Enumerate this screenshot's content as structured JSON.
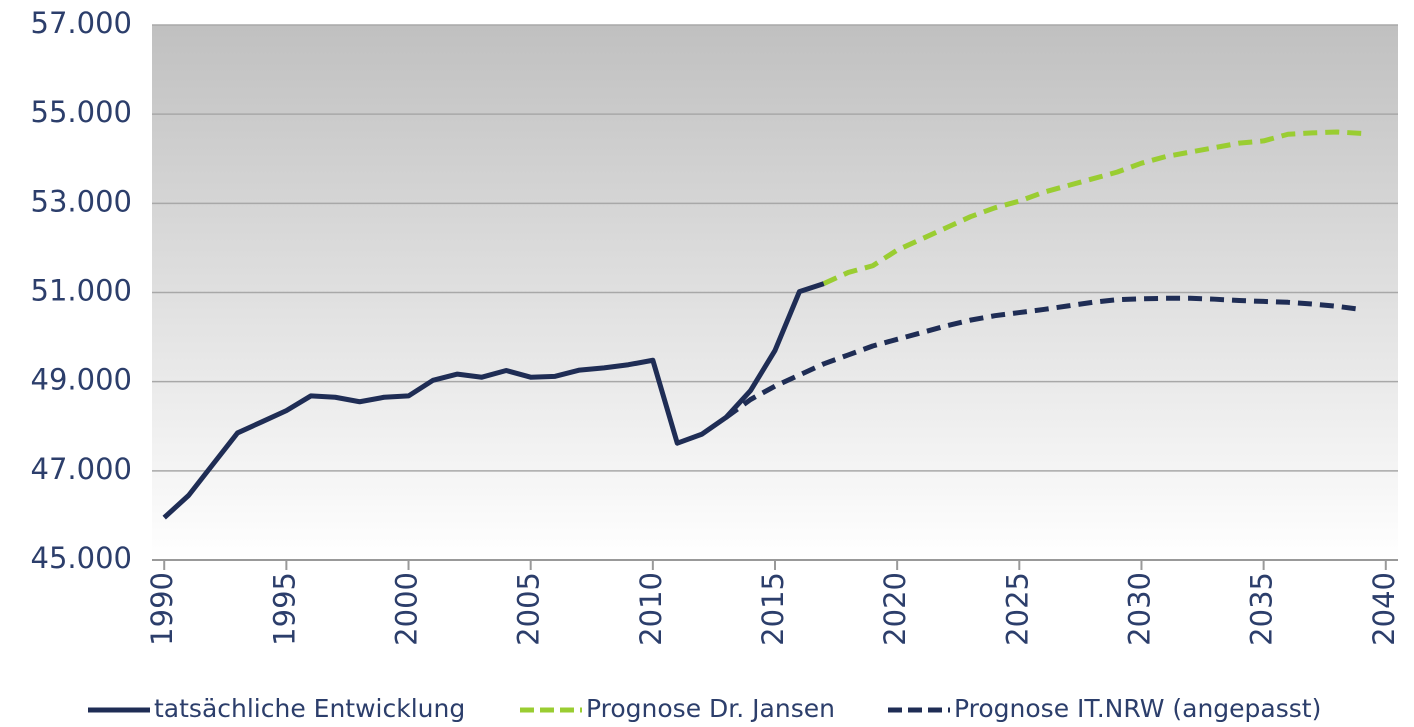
{
  "chart_data": {
    "type": "line",
    "xlim": [
      1989.5,
      2040.5
    ],
    "xticks": [
      1990,
      1995,
      2000,
      2005,
      2010,
      2015,
      2020,
      2025,
      2030,
      2035,
      2040
    ],
    "ylim": [
      45000,
      57000
    ],
    "yticks": [
      {
        "value": 45000,
        "label": "45.000"
      },
      {
        "value": 47000,
        "label": "47.000"
      },
      {
        "value": 49000,
        "label": "49.000"
      },
      {
        "value": 51000,
        "label": "51.000"
      },
      {
        "value": 53000,
        "label": "53.000"
      },
      {
        "value": 55000,
        "label": "55.000"
      },
      {
        "value": 57000,
        "label": "57.000"
      }
    ],
    "grid": true,
    "legend": "bottom",
    "series": [
      {
        "name": "tatsächliche Entwicklung",
        "color": "#1f2d55",
        "dash": false,
        "x": [
          1990,
          1991,
          1992,
          1993,
          1994,
          1995,
          1996,
          1997,
          1998,
          1999,
          2000,
          2001,
          2002,
          2003,
          2004,
          2005,
          2006,
          2007,
          2008,
          2009,
          2010,
          2011,
          2012,
          2013,
          2014,
          2015,
          2016,
          2017
        ],
        "values": [
          45950,
          46450,
          47150,
          47850,
          48100,
          48350,
          48680,
          48650,
          48550,
          48650,
          48680,
          49030,
          49170,
          49100,
          49250,
          49100,
          49120,
          49260,
          49310,
          49380,
          49480,
          47620,
          47820,
          48200,
          48800,
          49700,
          51020,
          51200
        ]
      },
      {
        "name": "Prognose Dr. Jansen",
        "color": "#9acd32",
        "dash": true,
        "x": [
          2017,
          2018,
          2019,
          2020,
          2021,
          2022,
          2023,
          2024,
          2025,
          2026,
          2027,
          2028,
          2029,
          2030,
          2031,
          2032,
          2033,
          2034,
          2035,
          2036,
          2037,
          2038,
          2039
        ],
        "values": [
          51200,
          51450,
          51600,
          51950,
          52200,
          52450,
          52700,
          52900,
          53050,
          53250,
          53400,
          53550,
          53700,
          53900,
          54050,
          54150,
          54250,
          54350,
          54400,
          54550,
          54580,
          54600,
          54570
        ]
      },
      {
        "name": "Prognose IT.NRW (angepasst)",
        "color": "#1f2d55",
        "dash": true,
        "x": [
          2013,
          2014,
          2015,
          2016,
          2017,
          2018,
          2019,
          2020,
          2021,
          2022,
          2023,
          2024,
          2025,
          2026,
          2027,
          2028,
          2029,
          2030,
          2031,
          2032,
          2033,
          2034,
          2035,
          2036,
          2037,
          2038,
          2039
        ],
        "values": [
          48200,
          48600,
          48900,
          49150,
          49400,
          49600,
          49800,
          49950,
          50100,
          50250,
          50380,
          50480,
          50550,
          50620,
          50700,
          50780,
          50840,
          50860,
          50870,
          50870,
          50850,
          50820,
          50800,
          50780,
          50740,
          50690,
          50620
        ]
      }
    ]
  }
}
